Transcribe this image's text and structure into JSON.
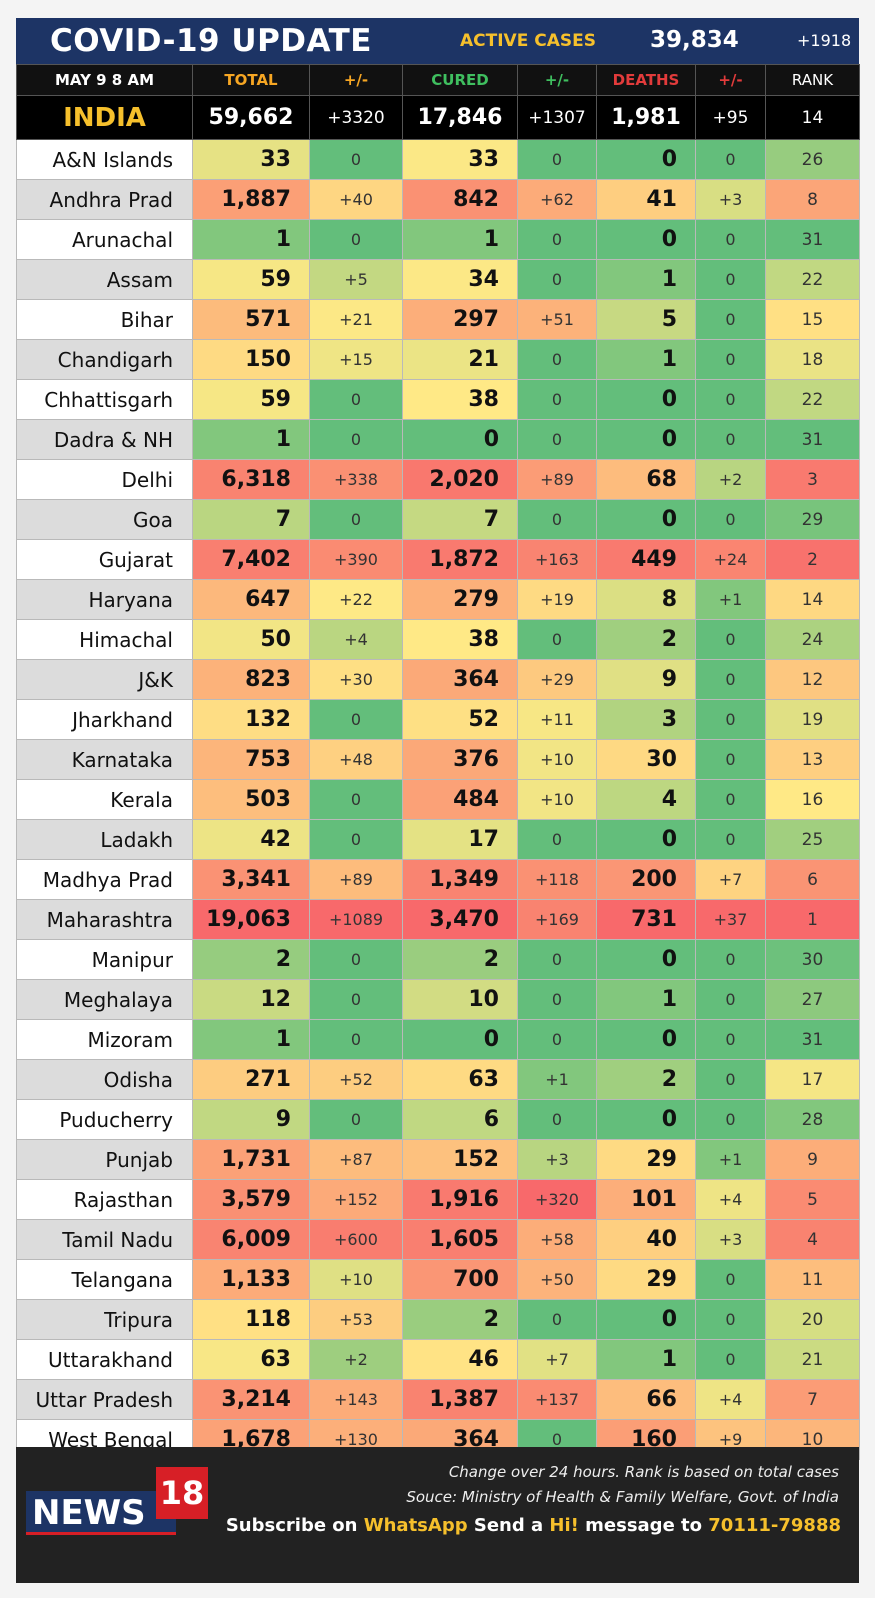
{
  "header": {
    "title": "COVID-19 UPDATE",
    "active_label": "ACTIVE CASES",
    "active_value": "39,834",
    "active_change": "+1918"
  },
  "columns": {
    "date": "MAY 9  8 AM",
    "total": "TOTAL",
    "total_chg": "+/-",
    "cured": "CURED",
    "cured_chg": "+/-",
    "deaths": "DEATHS",
    "deaths_chg": "+/-",
    "rank": "RANK"
  },
  "colors": {
    "header_bg": "#1d3465",
    "accent_yellow": "#f6c02c",
    "total_header": "#f6a623",
    "cured_header": "#3fbf5f",
    "deaths_header": "#e23b3b"
  },
  "india": {
    "name": "INDIA",
    "total": "59,662",
    "total_chg": "+3320",
    "cured": "17,846",
    "cured_chg": "+1307",
    "deaths": "1,981",
    "deaths_chg": "+95",
    "rank": "14"
  },
  "rows": [
    {
      "name": "A&N Islands",
      "total": "33",
      "total_chg": "0",
      "cured": "33",
      "cured_chg": "0",
      "deaths": "0",
      "deaths_chg": "0",
      "rank": "26"
    },
    {
      "name": "Andhra Prad",
      "total": "1,887",
      "total_chg": "+40",
      "cured": "842",
      "cured_chg": "+62",
      "deaths": "41",
      "deaths_chg": "+3",
      "rank": "8"
    },
    {
      "name": "Arunachal",
      "total": "1",
      "total_chg": "0",
      "cured": "1",
      "cured_chg": "0",
      "deaths": "0",
      "deaths_chg": "0",
      "rank": "31"
    },
    {
      "name": "Assam",
      "total": "59",
      "total_chg": "+5",
      "cured": "34",
      "cured_chg": "0",
      "deaths": "1",
      "deaths_chg": "0",
      "rank": "22"
    },
    {
      "name": "Bihar",
      "total": "571",
      "total_chg": "+21",
      "cured": "297",
      "cured_chg": "+51",
      "deaths": "5",
      "deaths_chg": "0",
      "rank": "15"
    },
    {
      "name": "Chandigarh",
      "total": "150",
      "total_chg": "+15",
      "cured": "21",
      "cured_chg": "0",
      "deaths": "1",
      "deaths_chg": "0",
      "rank": "18"
    },
    {
      "name": "Chhattisgarh",
      "total": "59",
      "total_chg": "0",
      "cured": "38",
      "cured_chg": "0",
      "deaths": "0",
      "deaths_chg": "0",
      "rank": "22"
    },
    {
      "name": "Dadra & NH",
      "total": "1",
      "total_chg": "0",
      "cured": "0",
      "cured_chg": "0",
      "deaths": "0",
      "deaths_chg": "0",
      "rank": "31"
    },
    {
      "name": "Delhi",
      "total": "6,318",
      "total_chg": "+338",
      "cured": "2,020",
      "cured_chg": "+89",
      "deaths": "68",
      "deaths_chg": "+2",
      "rank": "3"
    },
    {
      "name": "Goa",
      "total": "7",
      "total_chg": "0",
      "cured": "7",
      "cured_chg": "0",
      "deaths": "0",
      "deaths_chg": "0",
      "rank": "29"
    },
    {
      "name": "Gujarat",
      "total": "7,402",
      "total_chg": "+390",
      "cured": "1,872",
      "cured_chg": "+163",
      "deaths": "449",
      "deaths_chg": "+24",
      "rank": "2"
    },
    {
      "name": "Haryana",
      "total": "647",
      "total_chg": "+22",
      "cured": "279",
      "cured_chg": "+19",
      "deaths": "8",
      "deaths_chg": "+1",
      "rank": "14"
    },
    {
      "name": "Himachal",
      "total": "50",
      "total_chg": "+4",
      "cured": "38",
      "cured_chg": "0",
      "deaths": "2",
      "deaths_chg": "0",
      "rank": "24"
    },
    {
      "name": "J&K",
      "total": "823",
      "total_chg": "+30",
      "cured": "364",
      "cured_chg": "+29",
      "deaths": "9",
      "deaths_chg": "0",
      "rank": "12"
    },
    {
      "name": "Jharkhand",
      "total": "132",
      "total_chg": "0",
      "cured": "52",
      "cured_chg": "+11",
      "deaths": "3",
      "deaths_chg": "0",
      "rank": "19"
    },
    {
      "name": "Karnataka",
      "total": "753",
      "total_chg": "+48",
      "cured": "376",
      "cured_chg": "+10",
      "deaths": "30",
      "deaths_chg": "0",
      "rank": "13"
    },
    {
      "name": "Kerala",
      "total": "503",
      "total_chg": "0",
      "cured": "484",
      "cured_chg": "+10",
      "deaths": "4",
      "deaths_chg": "0",
      "rank": "16"
    },
    {
      "name": "Ladakh",
      "total": "42",
      "total_chg": "0",
      "cured": "17",
      "cured_chg": "0",
      "deaths": "0",
      "deaths_chg": "0",
      "rank": "25"
    },
    {
      "name": "Madhya Prad",
      "total": "3,341",
      "total_chg": "+89",
      "cured": "1,349",
      "cured_chg": "+118",
      "deaths": "200",
      "deaths_chg": "+7",
      "rank": "6"
    },
    {
      "name": "Maharashtra",
      "total": "19,063",
      "total_chg": "+1089",
      "cured": "3,470",
      "cured_chg": "+169",
      "deaths": "731",
      "deaths_chg": "+37",
      "rank": "1"
    },
    {
      "name": "Manipur",
      "total": "2",
      "total_chg": "0",
      "cured": "2",
      "cured_chg": "0",
      "deaths": "0",
      "deaths_chg": "0",
      "rank": "30"
    },
    {
      "name": "Meghalaya",
      "total": "12",
      "total_chg": "0",
      "cured": "10",
      "cured_chg": "0",
      "deaths": "1",
      "deaths_chg": "0",
      "rank": "27"
    },
    {
      "name": "Mizoram",
      "total": "1",
      "total_chg": "0",
      "cured": "0",
      "cured_chg": "0",
      "deaths": "0",
      "deaths_chg": "0",
      "rank": "31"
    },
    {
      "name": "Odisha",
      "total": "271",
      "total_chg": "+52",
      "cured": "63",
      "cured_chg": "+1",
      "deaths": "2",
      "deaths_chg": "0",
      "rank": "17"
    },
    {
      "name": "Puducherry",
      "total": "9",
      "total_chg": "0",
      "cured": "6",
      "cured_chg": "0",
      "deaths": "0",
      "deaths_chg": "0",
      "rank": "28"
    },
    {
      "name": "Punjab",
      "total": "1,731",
      "total_chg": "+87",
      "cured": "152",
      "cured_chg": "+3",
      "deaths": "29",
      "deaths_chg": "+1",
      "rank": "9"
    },
    {
      "name": "Rajasthan",
      "total": "3,579",
      "total_chg": "+152",
      "cured": "1,916",
      "cured_chg": "+320",
      "deaths": "101",
      "deaths_chg": "+4",
      "rank": "5"
    },
    {
      "name": "Tamil Nadu",
      "total": "6,009",
      "total_chg": "+600",
      "cured": "1,605",
      "cured_chg": "+58",
      "deaths": "40",
      "deaths_chg": "+3",
      "rank": "4"
    },
    {
      "name": "Telangana",
      "total": "1,133",
      "total_chg": "+10",
      "cured": "700",
      "cured_chg": "+50",
      "deaths": "29",
      "deaths_chg": "0",
      "rank": "11"
    },
    {
      "name": "Tripura",
      "total": "118",
      "total_chg": "+53",
      "cured": "2",
      "cured_chg": "0",
      "deaths": "0",
      "deaths_chg": "0",
      "rank": "20"
    },
    {
      "name": "Uttarakhand",
      "total": "63",
      "total_chg": "+2",
      "cured": "46",
      "cured_chg": "+7",
      "deaths": "1",
      "deaths_chg": "0",
      "rank": "21"
    },
    {
      "name": "Uttar Pradesh",
      "total": "3,214",
      "total_chg": "+143",
      "cured": "1,387",
      "cured_chg": "+137",
      "deaths": "66",
      "deaths_chg": "+4",
      "rank": "7"
    },
    {
      "name": "West Bengal",
      "total": "1,678",
      "total_chg": "+130",
      "cured": "364",
      "cured_chg": "0",
      "deaths": "160",
      "deaths_chg": "+9",
      "rank": "10"
    }
  ],
  "footer": {
    "logo_news": "NEWS",
    "logo_18": "18",
    "note1": "Change over 24 hours. Rank is based on total cases",
    "note2": "Souce: Ministry of Health & Family Welfare, Govt. of India",
    "sub_1": "Subscribe on ",
    "sub_whatsapp": "WhatsApp",
    "sub_2": " Send a ",
    "sub_hi": "Hi!",
    "sub_3": " message to ",
    "sub_number": "70111-79888"
  }
}
